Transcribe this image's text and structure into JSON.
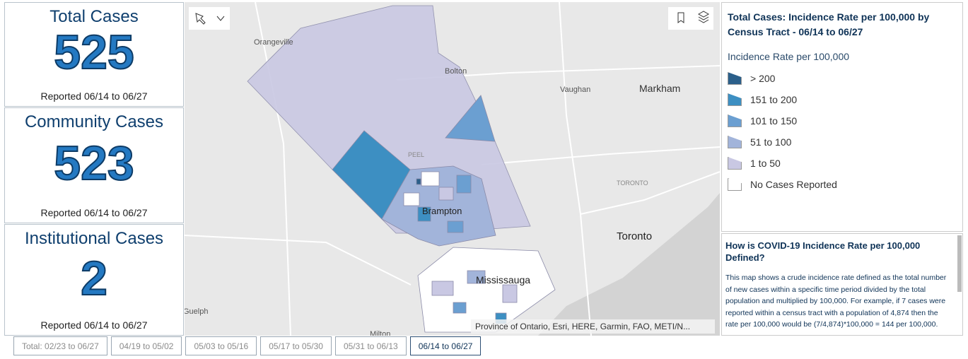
{
  "cards": [
    {
      "title": "Total Cases",
      "value": "525",
      "note": "Reported 06/14 to 06/27"
    },
    {
      "title": "Community Cases",
      "value": "523",
      "note": "Reported 06/14 to 06/27"
    },
    {
      "title": "Institutional Cases",
      "value": "2",
      "note": "Reported 06/14 to 06/27"
    }
  ],
  "map": {
    "labels": [
      "Orangeville",
      "Bolton",
      "Vaughan",
      "Markham",
      "PEEL",
      "Brampton",
      "TORONTO",
      "Toronto",
      "Mississauga",
      "Guelph",
      "Milton"
    ],
    "attribution": "Province of Ontario, Esri, HERE, Garmin, FAO, METI/N..."
  },
  "legend": {
    "title": "Total Cases: Incidence Rate per 100,000 by Census Tract - 06/14 to 06/27",
    "subtitle": "Incidence Rate per 100,000",
    "items": [
      {
        "label": "> 200",
        "color": "#2b5f8a"
      },
      {
        "label": "151 to 200",
        "color": "#3d8fc2"
      },
      {
        "label": "101 to 150",
        "color": "#6b9fd1"
      },
      {
        "label": "51 to 100",
        "color": "#a2b4da"
      },
      {
        "label": "1 to 50",
        "color": "#c9c8e3"
      },
      {
        "label": "No Cases Reported",
        "color": "#ffffff"
      }
    ]
  },
  "info": {
    "title": "How is COVID-19 Incidence Rate per 100,000 Defined?",
    "text": "This map shows a crude incidence rate defined as the total number of new cases within a specific time period divided by the total population and multiplied by 100,000. For example, if 7 cases were reported within a census tract with a population of 4,874 then the rate per 100,000 would be (7/4,874)*100,000 = 144 per 100,000."
  },
  "tabs": [
    "Total: 02/23 to 06/27",
    "04/19 to 05/02",
    "05/03 to 05/16",
    "05/17 to 05/30",
    "05/31 to 06/13",
    "06/14 to 06/27"
  ],
  "active_tab": 5
}
